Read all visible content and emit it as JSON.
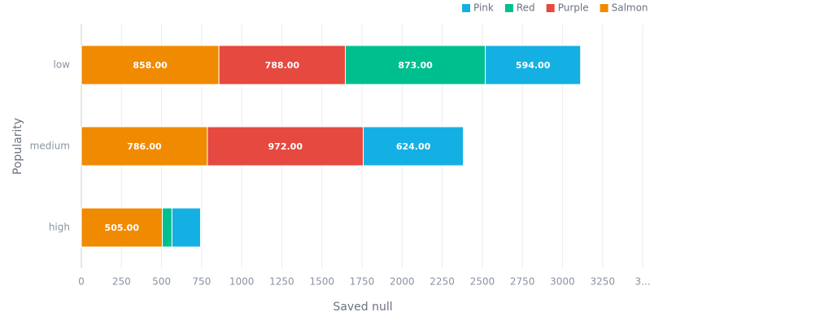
{
  "chart_data": {
    "type": "bar",
    "orientation": "horizontal",
    "stacked": true,
    "x_label": "Saved null",
    "y_label": "Popularity",
    "categories": [
      "low",
      "medium",
      "high"
    ],
    "series": [
      {
        "name": "Pink",
        "color": "#14b0e3",
        "values": [
          594,
          624,
          178
        ],
        "value_labels": [
          "594.00",
          "624.00",
          null
        ]
      },
      {
        "name": "Red",
        "color": "#00bf8f",
        "values": [
          873,
          null,
          60
        ],
        "value_labels": [
          "873.00",
          null,
          null
        ]
      },
      {
        "name": "Purple",
        "color": "#e5493f",
        "values": [
          788,
          972,
          null
        ],
        "value_labels": [
          "788.00",
          "972.00",
          null
        ]
      },
      {
        "name": "Salmon",
        "color": "#f08a00",
        "values": [
          858,
          786,
          505
        ],
        "value_labels": [
          "858.00",
          "786.00",
          "505.00"
        ]
      }
    ],
    "xlim": [
      0,
      3500
    ],
    "xticks": [
      0,
      250,
      500,
      750,
      1000,
      1250,
      1500,
      1750,
      2000,
      2250,
      2500,
      2750,
      3000,
      3250,
      {
        "value": 3500,
        "label": "3..."
      }
    ],
    "grid": true,
    "legend": "top"
  }
}
